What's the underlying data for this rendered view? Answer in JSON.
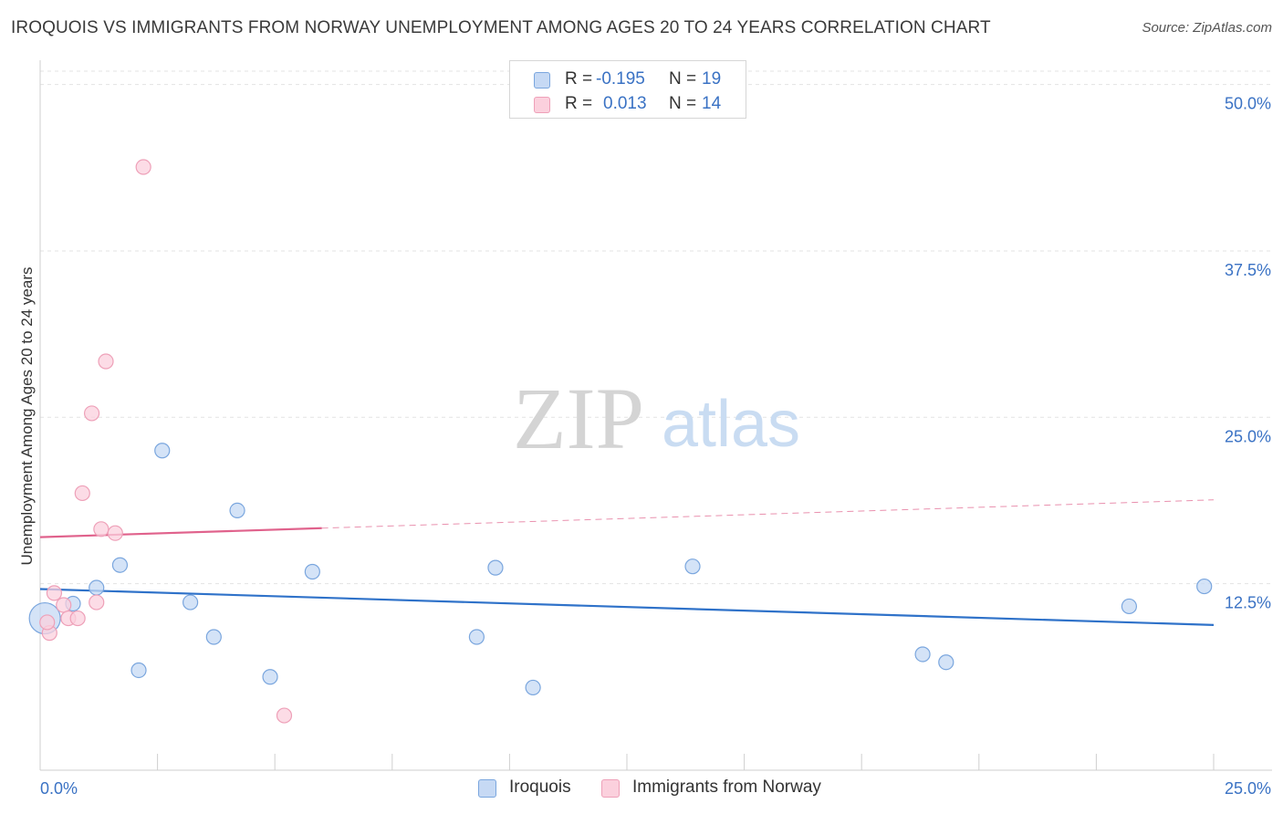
{
  "title": "IROQUOIS VS IMMIGRANTS FROM NORWAY UNEMPLOYMENT AMONG AGES 20 TO 24 YEARS CORRELATION CHART",
  "source": "Source: ZipAtlas.com",
  "watermark": {
    "zip": "ZIP",
    "atlas": "atlas"
  },
  "legend": {
    "rows": [
      {
        "r_label": "R =",
        "r_value": "-0.195",
        "n_label": "N =",
        "n_value": "19"
      },
      {
        "r_label": "R =",
        "r_value": "0.013",
        "n_label": "N =",
        "n_value": "14"
      }
    ]
  },
  "colors": {
    "iroquois_fill": "#c6d9f4",
    "iroquois_stroke": "#7aa6de",
    "iroquois_line": "#2f72c9",
    "norway_fill": "#fbd0dd",
    "norway_stroke": "#eea0b8",
    "norway_line": "#e0628c",
    "tick_label": "#3a72c4",
    "grid": "#e3e3e3"
  },
  "chart_data": {
    "type": "scatter",
    "title": "IROQUOIS VS IMMIGRANTS FROM NORWAY UNEMPLOYMENT AMONG AGES 20 TO 24 YEARS CORRELATION CHART",
    "xlabel": "",
    "ylabel": "Unemployment Among Ages 20 to 24 years",
    "xlim": [
      0,
      25
    ],
    "ylim": [
      0,
      51
    ],
    "x_tick_labels": [
      "0.0%",
      "25.0%"
    ],
    "y_ticks": [
      12.5,
      25.0,
      37.5,
      50.0
    ],
    "y_tick_labels": [
      "12.5%",
      "25.0%",
      "37.5%",
      "50.0%"
    ],
    "grid": true,
    "legend_position": "top-center",
    "series": [
      {
        "name": "Iroquois",
        "points": [
          {
            "x": 0.1,
            "y": 9.9,
            "large": true
          },
          {
            "x": 0.7,
            "y": 11.0
          },
          {
            "x": 1.2,
            "y": 12.2
          },
          {
            "x": 1.7,
            "y": 13.9
          },
          {
            "x": 2.1,
            "y": 6.0
          },
          {
            "x": 2.6,
            "y": 22.5
          },
          {
            "x": 3.2,
            "y": 11.1
          },
          {
            "x": 3.7,
            "y": 8.5
          },
          {
            "x": 4.2,
            "y": 18.0
          },
          {
            "x": 4.9,
            "y": 5.5
          },
          {
            "x": 5.8,
            "y": 13.4
          },
          {
            "x": 9.3,
            "y": 8.5
          },
          {
            "x": 9.7,
            "y": 13.7
          },
          {
            "x": 10.5,
            "y": 4.7
          },
          {
            "x": 13.9,
            "y": 13.8
          },
          {
            "x": 18.8,
            "y": 7.2
          },
          {
            "x": 19.3,
            "y": 6.6
          },
          {
            "x": 23.2,
            "y": 10.8
          },
          {
            "x": 24.8,
            "y": 12.3
          }
        ],
        "trend": {
          "x": [
            0,
            25
          ],
          "y": [
            12.1,
            9.4
          ]
        }
      },
      {
        "name": "Immigrants from Norway",
        "points": [
          {
            "x": 0.2,
            "y": 8.8
          },
          {
            "x": 0.3,
            "y": 11.8
          },
          {
            "x": 0.5,
            "y": 10.9
          },
          {
            "x": 0.6,
            "y": 9.9
          },
          {
            "x": 0.8,
            "y": 9.9
          },
          {
            "x": 0.9,
            "y": 19.3
          },
          {
            "x": 1.1,
            "y": 25.3
          },
          {
            "x": 1.2,
            "y": 11.1
          },
          {
            "x": 1.3,
            "y": 16.6
          },
          {
            "x": 1.4,
            "y": 29.2
          },
          {
            "x": 1.6,
            "y": 16.3
          },
          {
            "x": 2.2,
            "y": 43.8
          },
          {
            "x": 5.2,
            "y": 2.6
          },
          {
            "x": 0.15,
            "y": 9.6
          }
        ],
        "trend": {
          "x": [
            0,
            25
          ],
          "y": [
            16.0,
            18.8
          ],
          "solid_until_x": 6
        }
      }
    ]
  },
  "bottom_legend": {
    "iroquois": "Iroquois",
    "norway": "Immigrants from Norway"
  }
}
